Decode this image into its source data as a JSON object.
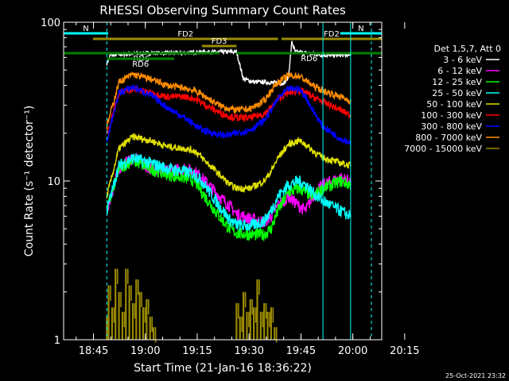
{
  "chart_data": {
    "type": "line",
    "title": "RHESSI Observing Summary Count Rates",
    "xlabel": "Start Time (21-Jan-16 18:36:22)",
    "ylabel": "Count Rate (s⁻¹ detector⁻¹)",
    "y_scale": "log",
    "ylim": [
      1,
      100
    ],
    "y_ticks": [
      1,
      10,
      100
    ],
    "y_tick_labels": [
      "1",
      "10",
      "100"
    ],
    "x_range_min": [
      0,
      92
    ],
    "x_ticks_min": [
      8.63,
      23.63,
      38.63,
      53.63,
      68.63,
      83.63,
      98.63
    ],
    "x_tick_labels": [
      "18:45",
      "19:00",
      "19:15",
      "19:30",
      "19:45",
      "20:00",
      "20:15"
    ],
    "legend_header": "Det 1,5,7, Att 0",
    "legend_placement": "right",
    "footer_timestamp": "25-Oct-2021 23:32",
    "data_window_min": [
      12.5,
      83.0
    ],
    "series": [
      {
        "name": "3 - 6 keV",
        "color": "#ffffff",
        "x": [
          12.5,
          13.5,
          18,
          25,
          35,
          40,
          45,
          46,
          50,
          52,
          55,
          58,
          63,
          64,
          65,
          66,
          67,
          70,
          75,
          80,
          83
        ],
        "y": [
          55,
          62,
          63,
          64,
          64,
          65,
          65,
          65,
          65,
          44,
          42,
          42,
          41,
          42,
          45,
          75,
          65,
          64,
          62,
          62,
          62
        ]
      },
      {
        "name": "6 - 12 keV",
        "color": "#ff00ff",
        "x": [
          12.5,
          16,
          20,
          25,
          30,
          35,
          38,
          40,
          45,
          48,
          50,
          54,
          58,
          60,
          62,
          65,
          68,
          70,
          72,
          75,
          80,
          83
        ],
        "y": [
          6.5,
          12,
          14,
          12,
          11.5,
          12,
          11.5,
          10.5,
          8,
          7,
          6.2,
          5.8,
          5.5,
          6,
          7,
          8,
          7,
          6.5,
          8,
          9.5,
          10.5,
          10
        ]
      },
      {
        "name": "12 - 25 keV",
        "color": "#00ff00",
        "x": [
          12.5,
          16,
          20,
          25,
          30,
          35,
          38,
          40,
          45,
          48,
          50,
          54,
          58,
          60,
          62,
          65,
          68,
          70,
          72,
          75,
          80,
          83
        ],
        "y": [
          6.5,
          12,
          13.5,
          12,
          11,
          10.5,
          10,
          8.5,
          6,
          5,
          4.7,
          4.6,
          4.6,
          5,
          6.5,
          8.5,
          9,
          8.5,
          8,
          9,
          10,
          9.5
        ]
      },
      {
        "name": "25 - 50 keV",
        "color": "#00ffff",
        "x": [
          12.5,
          16,
          20,
          25,
          30,
          35,
          38,
          40,
          45,
          48,
          50,
          54,
          58,
          60,
          62,
          65,
          68,
          70,
          72,
          75,
          80,
          83
        ],
        "y": [
          6.5,
          12.5,
          14,
          13,
          12,
          11.5,
          11,
          10,
          7,
          5.7,
          5.3,
          5.2,
          5.6,
          6.5,
          8,
          9.5,
          10,
          9.5,
          8.5,
          7.5,
          6.5,
          6
        ]
      },
      {
        "name": "50 - 100 keV",
        "color": "#e0e000",
        "x": [
          12.5,
          16,
          20,
          25,
          30,
          35,
          38,
          40,
          45,
          48,
          50,
          54,
          58,
          60,
          62,
          65,
          68,
          70,
          72,
          75,
          80,
          83
        ],
        "y": [
          8,
          16,
          19,
          18,
          16.5,
          16,
          15.5,
          14,
          11,
          9.5,
          9,
          9,
          10,
          11.5,
          14,
          17,
          18,
          17,
          15.5,
          14,
          13,
          12.5
        ]
      },
      {
        "name": "100 - 300 keV",
        "color": "#ff0000",
        "x": [
          12.5,
          16,
          20,
          25,
          30,
          35,
          38,
          40,
          45,
          48,
          50,
          54,
          58,
          60,
          62,
          65,
          68,
          70,
          72,
          75,
          80,
          83
        ],
        "y": [
          20,
          36,
          38,
          36,
          34,
          34,
          33,
          31,
          27,
          25.5,
          25,
          25,
          26.5,
          29,
          33,
          36,
          37,
          36,
          34,
          31.5,
          28,
          26
        ]
      },
      {
        "name": "300 - 800 keV",
        "color": "#0000ff",
        "x": [
          12.5,
          16,
          20,
          25,
          30,
          35,
          38,
          40,
          45,
          48,
          50,
          54,
          58,
          60,
          62,
          65,
          68,
          70,
          72,
          75,
          80,
          83
        ],
        "y": [
          18,
          36,
          39,
          35,
          29,
          25,
          22.5,
          21,
          19.5,
          19.5,
          20,
          21,
          24,
          28,
          33,
          38,
          38,
          34,
          28,
          22,
          18.5,
          17.5
        ]
      },
      {
        "name": "800 - 7000 keV",
        "color": "#ff8c00",
        "x": [
          12.5,
          16,
          20,
          25,
          30,
          35,
          38,
          40,
          45,
          48,
          50,
          54,
          58,
          60,
          62,
          65,
          68,
          70,
          72,
          75,
          80,
          83
        ],
        "y": [
          22,
          42,
          47,
          44,
          40,
          38.5,
          37,
          35,
          30,
          28.5,
          28,
          28.5,
          32,
          37,
          42,
          46,
          46,
          43,
          40,
          37,
          34,
          32
        ]
      },
      {
        "name": "7000 - 15000 keV",
        "color": "#9b8b00",
        "x": [
          12.5,
          13,
          14,
          15,
          16,
          17,
          18,
          19,
          20,
          21,
          22,
          23,
          24,
          25,
          26,
          50,
          51,
          52,
          53,
          54,
          55,
          56,
          57,
          58,
          59,
          60,
          61
        ],
        "y": [
          1.4,
          2.2,
          1.6,
          2.8,
          2.0,
          1.5,
          2.8,
          2.2,
          1.7,
          2.4,
          2.0,
          1.6,
          1.8,
          1.4,
          1.2,
          1.7,
          1.4,
          2.0,
          1.5,
          1.8,
          1.6,
          2.4,
          1.5,
          1.7,
          1.5,
          1.6,
          1.2
        ]
      }
    ],
    "annotations": [
      {
        "label": "N",
        "color": "#00ffff",
        "x_min": [
          0,
          12.9
        ]
      },
      {
        "label": "N",
        "color": "#00ffff",
        "x_min": [
          80,
          93
        ]
      },
      {
        "label": "FD2",
        "color": "#9b8b00",
        "x_min": [
          8.5,
          62
        ]
      },
      {
        "label": "FD2",
        "color": "#9b8b00",
        "x_min": [
          63,
          93
        ]
      },
      {
        "label": "FD3",
        "color": "#9b8b00",
        "x_min": [
          40,
          50
        ]
      },
      {
        "label": "RD6",
        "color": "#008000",
        "x_min": [
          0,
          45
        ]
      },
      {
        "label": "RD6",
        "color": "#008000",
        "x_min": [
          50,
          93
        ]
      },
      {
        "label": "RD6",
        "color": "#008000",
        "x_min": [
          12.5,
          32
        ]
      }
    ]
  }
}
